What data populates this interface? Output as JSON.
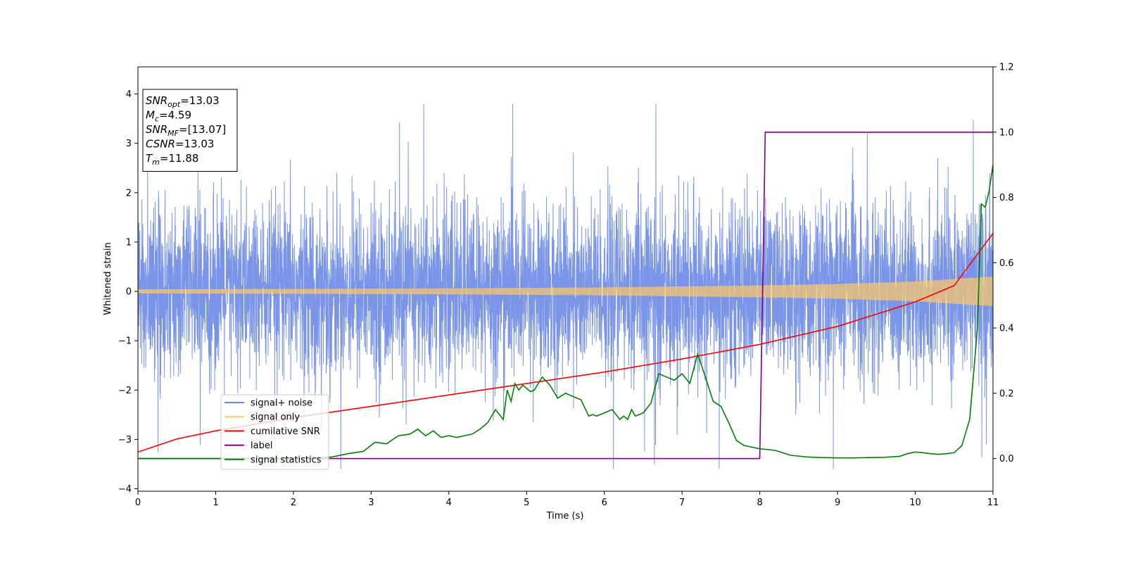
{
  "chart_data": {
    "type": "line",
    "xlabel": "Time (s)",
    "ylabel": "Whitened strain",
    "ylabel_right": "",
    "xlim": [
      0,
      11
    ],
    "ylim": [
      -4.05,
      4.55
    ],
    "ylim_right": [
      -0.1,
      1.2
    ],
    "x_ticks": [
      0,
      1,
      2,
      3,
      4,
      5,
      6,
      7,
      8,
      9,
      10,
      11
    ],
    "y_ticks": [
      -4,
      -3,
      -2,
      -1,
      0,
      1,
      2,
      3,
      4
    ],
    "y_ticks_right": [
      0.0,
      0.2,
      0.4,
      0.6,
      0.8,
      1.0,
      1.2
    ],
    "grid": false,
    "legend_position": "lower-left",
    "info_box": {
      "position": "top-left",
      "lines": [
        {
          "sym": "SNR",
          "sub": "opt",
          "val": "=13.03"
        },
        {
          "sym": "M",
          "sub": "c",
          "val": "=4.59"
        },
        {
          "sym": "SNR",
          "sub": "MF",
          "val": "=[13.07]"
        },
        {
          "sym": "CSNR",
          "sub": "",
          "val": "=13.03"
        },
        {
          "sym": "T",
          "sub": "m",
          "val": "=11.88"
        }
      ]
    },
    "series": [
      {
        "name": "signal+ noise",
        "axis": "left",
        "color": "#6b8ae6",
        "kind": "noise",
        "description_values": {
          "typical_band": [
            -1.4,
            1.6
          ],
          "max": 3.85,
          "min": -3.65
        }
      },
      {
        "name": "signal only",
        "axis": "left",
        "color": "#ffc966",
        "kind": "chirp",
        "amplitude_envelope": {
          "x": [
            0,
            2,
            4,
            6,
            8,
            9,
            10,
            11
          ],
          "y": [
            0.04,
            0.05,
            0.06,
            0.08,
            0.12,
            0.15,
            0.2,
            0.3
          ]
        }
      },
      {
        "name": "cumilative SNR",
        "axis": "right",
        "color": "#ff0000",
        "x": [
          0,
          0.5,
          1,
          2,
          3,
          4,
          5,
          6,
          7,
          8,
          9,
          10,
          10.5,
          11
        ],
        "y": [
          0.02,
          0.06,
          0.085,
          0.125,
          0.16,
          0.195,
          0.23,
          0.265,
          0.305,
          0.35,
          0.405,
          0.48,
          0.53,
          0.69
        ]
      },
      {
        "name": "label",
        "axis": "right",
        "color": "#800080",
        "x": [
          0,
          8.0,
          8.07,
          11
        ],
        "y": [
          0,
          0,
          1,
          1
        ]
      },
      {
        "name": "signal statistics",
        "axis": "right",
        "color": "#008000",
        "x": [
          0,
          1,
          2,
          2.5,
          2.7,
          2.9,
          3.05,
          3.2,
          3.35,
          3.5,
          3.6,
          3.7,
          3.8,
          3.9,
          4.0,
          4.1,
          4.2,
          4.3,
          4.4,
          4.5,
          4.6,
          4.7,
          4.75,
          4.8,
          4.85,
          4.9,
          4.95,
          5.0,
          5.05,
          5.1,
          5.2,
          5.3,
          5.4,
          5.5,
          5.6,
          5.7,
          5.8,
          5.85,
          5.9,
          6.0,
          6.1,
          6.2,
          6.25,
          6.3,
          6.35,
          6.4,
          6.5,
          6.6,
          6.7,
          6.8,
          6.9,
          7.0,
          7.1,
          7.2,
          7.25,
          7.3,
          7.4,
          7.5,
          7.6,
          7.7,
          7.8,
          7.9,
          8.0,
          8.2,
          8.4,
          8.6,
          8.8,
          9.0,
          9.2,
          9.4,
          9.6,
          9.8,
          9.9,
          10.0,
          10.1,
          10.2,
          10.3,
          10.4,
          10.5,
          10.6,
          10.7,
          10.8,
          10.85,
          10.9,
          10.95,
          11.0
        ],
        "y": [
          0.0,
          0.0,
          0.0,
          0.005,
          0.015,
          0.022,
          0.05,
          0.045,
          0.07,
          0.075,
          0.09,
          0.07,
          0.085,
          0.065,
          0.07,
          0.065,
          0.07,
          0.075,
          0.09,
          0.11,
          0.15,
          0.12,
          0.21,
          0.175,
          0.23,
          0.21,
          0.225,
          0.215,
          0.205,
          0.21,
          0.25,
          0.225,
          0.185,
          0.2,
          0.19,
          0.18,
          0.13,
          0.135,
          0.13,
          0.14,
          0.15,
          0.12,
          0.13,
          0.12,
          0.15,
          0.13,
          0.14,
          0.17,
          0.26,
          0.25,
          0.24,
          0.26,
          0.23,
          0.32,
          0.285,
          0.25,
          0.175,
          0.16,
          0.11,
          0.055,
          0.04,
          0.035,
          0.03,
          0.025,
          0.01,
          0.005,
          0.003,
          0.002,
          0.002,
          0.003,
          0.004,
          0.007,
          0.015,
          0.02,
          0.018,
          0.015,
          0.013,
          0.015,
          0.018,
          0.04,
          0.12,
          0.4,
          0.78,
          0.77,
          0.82,
          0.9
        ]
      }
    ]
  }
}
